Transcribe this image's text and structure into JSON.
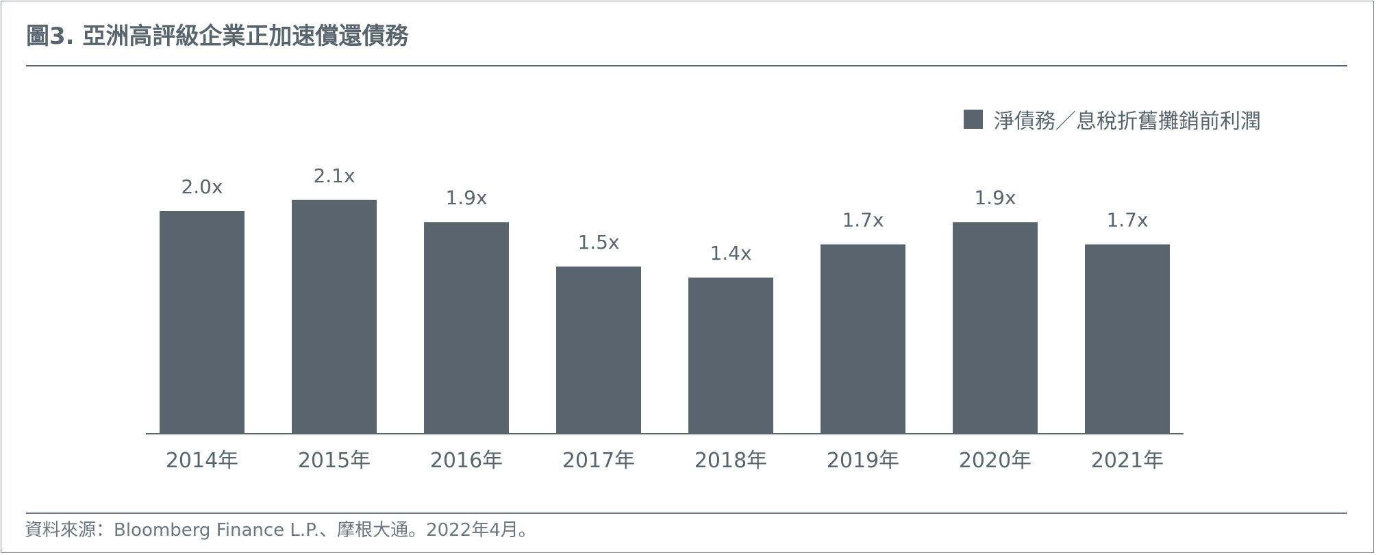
{
  "figure": {
    "title": "圖3. 亞洲高評級企業正加速償還債務",
    "source": "資料來源：Bloomberg Finance L.P.、摩根大通。2022年4月。"
  },
  "chart_data": {
    "type": "bar",
    "title": "圖3. 亞洲高評級企業正加速償還債務",
    "categories": [
      "2014年",
      "2015年",
      "2016年",
      "2017年",
      "2018年",
      "2019年",
      "2020年",
      "2021年"
    ],
    "series": [
      {
        "name": "淨債務／息稅折舊攤銷前利潤",
        "values": [
          2.0,
          2.1,
          1.9,
          1.5,
          1.4,
          1.7,
          1.9,
          1.7
        ],
        "labels": [
          "2.0x",
          "2.1x",
          "1.9x",
          "1.5x",
          "1.4x",
          "1.7x",
          "1.9x",
          "1.7x"
        ],
        "color": "#58656f"
      }
    ],
    "xlabel": "",
    "ylabel": "",
    "ylim": [
      0,
      2.6
    ],
    "grid": false,
    "legend_position": "top-right"
  },
  "colors": {
    "bar": "#58656f",
    "text": "#58656f",
    "axis": "#58656f"
  }
}
